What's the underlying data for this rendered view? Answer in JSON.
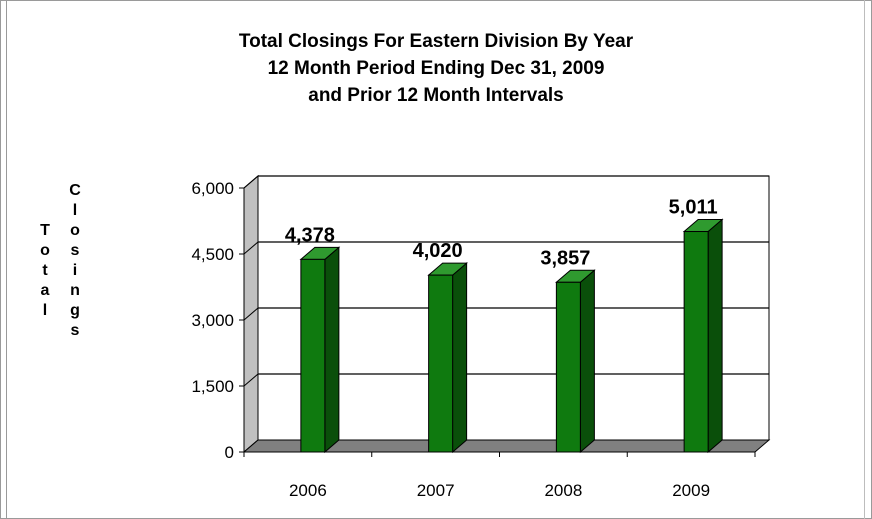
{
  "chart_data": {
    "type": "bar",
    "title_lines": [
      "Total Closings For Eastern Division By Year",
      "12 Month Period Ending Dec 31, 2009",
      "and Prior 12 Month Intervals"
    ],
    "ylabel_words": [
      "Total",
      "Closings"
    ],
    "xlabel": "",
    "categories": [
      "2006",
      "2007",
      "2008",
      "2009"
    ],
    "values": [
      4378,
      4020,
      3857,
      5011
    ],
    "value_labels": [
      "4,378",
      "4,020",
      "3,857",
      "5,011"
    ],
    "ylim": [
      0,
      6000
    ],
    "yticks": [
      0,
      1500,
      3000,
      4500,
      6000
    ],
    "ytick_labels": [
      "0",
      "1,500",
      "3,000",
      "4,500",
      "6,000"
    ],
    "grid": true,
    "legend": "none",
    "colors": {
      "bar_front": "#0f7a0f",
      "bar_side": "#0a4f0a",
      "bar_top": "#2f9a2f",
      "wall_back": "#ffffff",
      "wall_left": "#c0c0c0",
      "floor": "#808080"
    }
  }
}
